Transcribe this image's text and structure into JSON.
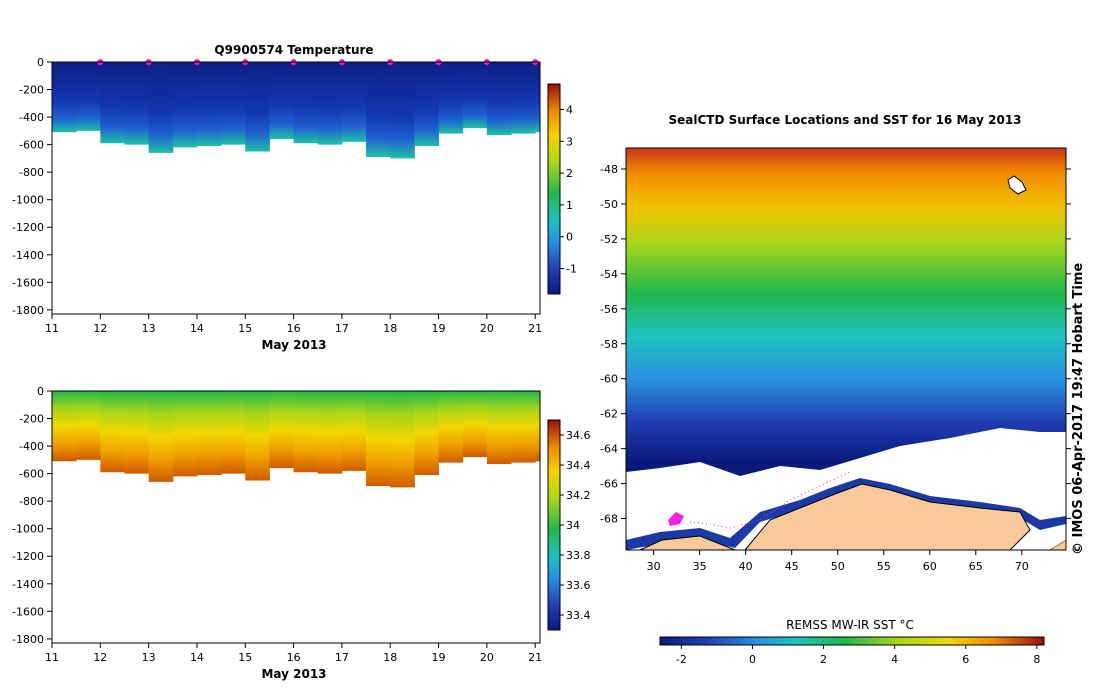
{
  "chart_data": [
    {
      "type": "heatmap",
      "name": "temperature-profile",
      "title": "Q9900574  Temperature",
      "xlabel": "May 2013",
      "x_ticks": [
        "11",
        "12",
        "13",
        "14",
        "15",
        "16",
        "17",
        "18",
        "19",
        "20",
        "21"
      ],
      "xlim": [
        11,
        21.1
      ],
      "y_ticks": [
        "0",
        "-200",
        "-400",
        "-600",
        "-800",
        "-1000",
        "-1200",
        "-1400",
        "-1600",
        "-1800"
      ],
      "ylim": [
        -1830,
        0
      ],
      "profile_days": [
        11.0,
        11.5,
        12.0,
        12.5,
        13.0,
        13.5,
        14.0,
        14.5,
        15.0,
        15.5,
        16.0,
        16.5,
        17.0,
        17.5,
        18.0,
        18.5,
        19.0,
        19.5,
        20.0,
        20.5,
        21.0
      ],
      "profile_max_depth": [
        510,
        500,
        590,
        600,
        660,
        620,
        610,
        600,
        650,
        560,
        590,
        600,
        580,
        690,
        700,
        610,
        520,
        480,
        530,
        520,
        510
      ],
      "surface_marker_days": [
        12,
        13,
        14,
        15,
        16,
        17,
        18,
        19,
        20,
        21
      ],
      "colorbar": {
        "ticks": [
          "4",
          "3",
          "2",
          "1",
          "0",
          "-1"
        ],
        "range": [
          -1.8,
          4.8
        ]
      }
    },
    {
      "type": "heatmap",
      "name": "salinity-profile",
      "title": "",
      "xlabel": "May 2013",
      "x_ticks": [
        "11",
        "12",
        "13",
        "14",
        "15",
        "16",
        "17",
        "18",
        "19",
        "20",
        "21"
      ],
      "xlim": [
        11,
        21.1
      ],
      "y_ticks": [
        "0",
        "-200",
        "-400",
        "-600",
        "-800",
        "-1000",
        "-1200",
        "-1400",
        "-1600",
        "-1800"
      ],
      "ylim": [
        -1830,
        0
      ],
      "colorbar": {
        "ticks": [
          "34.6",
          "34.4",
          "34.2",
          "34",
          "33.8",
          "33.6",
          "33.4"
        ],
        "range": [
          33.3,
          34.7
        ]
      }
    },
    {
      "type": "heatmap",
      "name": "sst-map",
      "title": "SealCTD Surface Locations and SST for 16 May 2013",
      "x_ticks": [
        "30",
        "35",
        "40",
        "45",
        "50",
        "55",
        "60",
        "65",
        "70"
      ],
      "xlim": [
        27,
        74.8
      ],
      "y_ticks": [
        "-48",
        "-50",
        "-52",
        "-54",
        "-56",
        "-58",
        "-60",
        "-62",
        "-64",
        "-66",
        "-68"
      ],
      "ylim": [
        -69.8,
        -46.8
      ],
      "colorbar": {
        "label": "REMSS MW-IR SST °C",
        "ticks": [
          "-2",
          "0",
          "2",
          "4",
          "6",
          "8"
        ],
        "range": [
          -2.6,
          8.2
        ]
      },
      "side_label": "© IMOS 06-Apr-2017 19:47 Hobart Time"
    }
  ]
}
